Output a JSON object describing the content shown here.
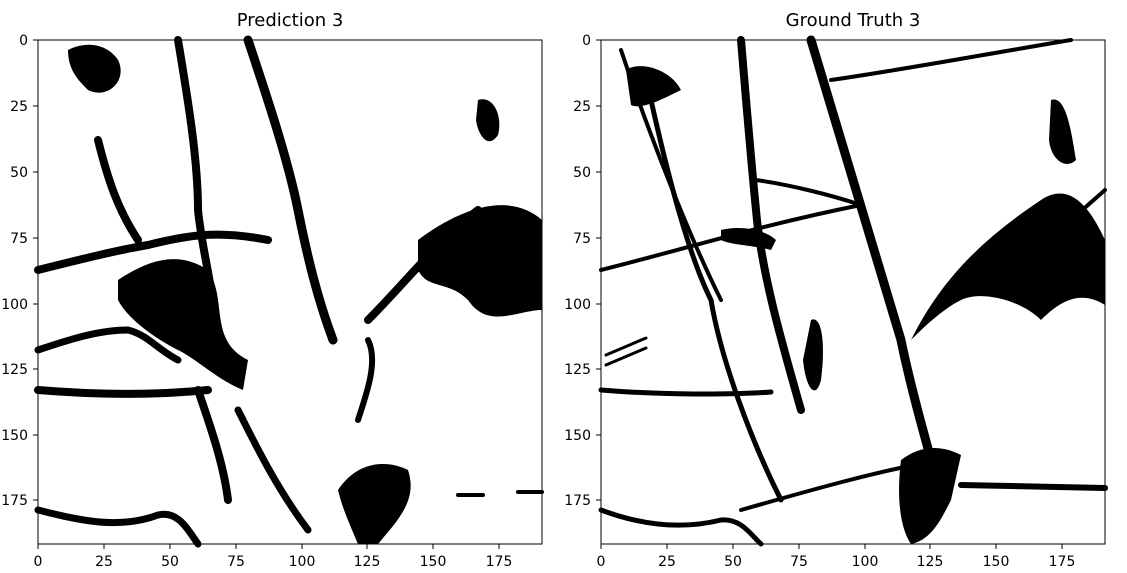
{
  "figure": {
    "panels": [
      {
        "title": "Prediction 3",
        "xticks": [
          "0",
          "25",
          "50",
          "75",
          "100",
          "125",
          "150",
          "175"
        ],
        "yticks": [
          "0",
          "25",
          "50",
          "75",
          "100",
          "125",
          "150",
          "175"
        ]
      },
      {
        "title": "Ground Truth 3",
        "xticks": [
          "0",
          "25",
          "50",
          "75",
          "100",
          "125",
          "150",
          "175"
        ],
        "yticks": [
          "0",
          "25",
          "50",
          "75",
          "100",
          "125",
          "150",
          "175"
        ]
      }
    ],
    "colors": {
      "foreground": "#000000",
      "background": "#ffffff"
    }
  }
}
